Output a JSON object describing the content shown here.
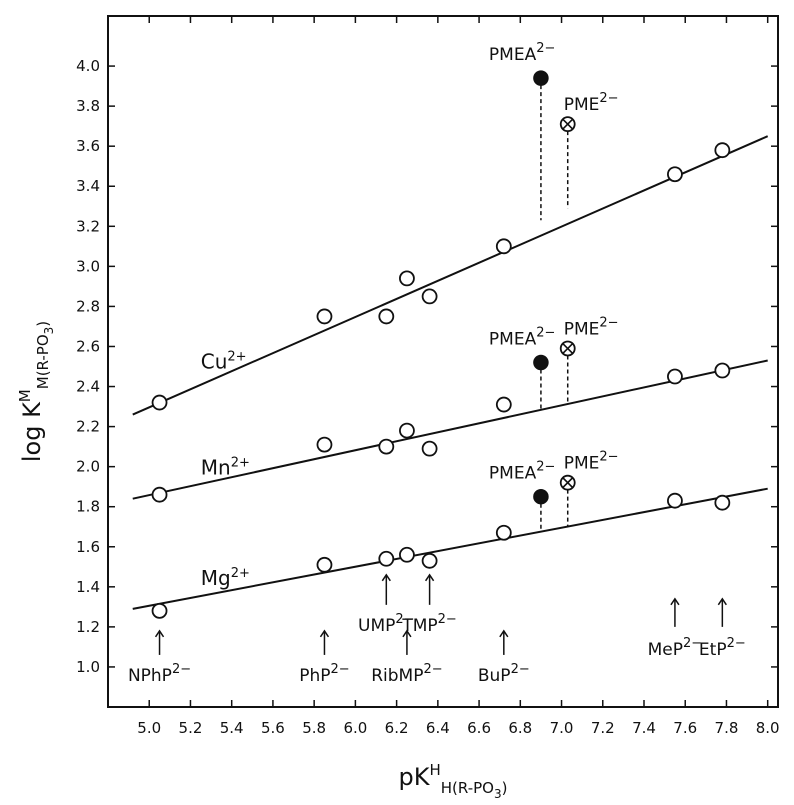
{
  "chart_data": {
    "type": "scatter",
    "x_axis": {
      "label": "pK",
      "label_sup": "H",
      "label_sub": "H(R-PO",
      "label_sub_tail": "3",
      "label_close": ")",
      "range": [
        4.8,
        8.05
      ],
      "ticks": [
        5.0,
        5.2,
        5.4,
        5.6,
        5.8,
        6.0,
        6.2,
        6.4,
        6.6,
        6.8,
        7.0,
        7.2,
        7.4,
        7.6,
        7.8,
        8.0
      ],
      "tick_labels": [
        "5.0",
        "5.2",
        "5.4",
        "5.6",
        "5.8",
        "6.0",
        "6.2",
        "6.4",
        "6.6",
        "6.8",
        "7.0",
        "7.2",
        "7.4",
        "7.6",
        "7.8",
        "8.0"
      ]
    },
    "y_axis": {
      "label": "log K",
      "label_sup": "M",
      "label_sub": "M(R-PO",
      "label_sub_tail": "3",
      "label_close": ")",
      "range": [
        0.8,
        4.25
      ],
      "ticks": [
        1.0,
        1.2,
        1.4,
        1.6,
        1.8,
        2.0,
        2.2,
        2.4,
        2.6,
        2.8,
        3.0,
        3.2,
        3.4,
        3.6,
        3.8,
        4.0
      ],
      "tick_labels": [
        "1.0",
        "1.2",
        "1.4",
        "1.6",
        "1.8",
        "2.0",
        "2.2",
        "2.4",
        "2.6",
        "2.8",
        "3.0",
        "3.2",
        "3.4",
        "3.6",
        "3.8",
        "4.0"
      ]
    },
    "series": [
      {
        "name": "Cu",
        "charge": "2+",
        "line": {
          "x": [
            4.92,
            8.0
          ],
          "y": [
            2.26,
            3.65
          ]
        },
        "points": [
          {
            "x": 5.05,
            "y": 2.32
          },
          {
            "x": 5.85,
            "y": 2.75
          },
          {
            "x": 6.15,
            "y": 2.75
          },
          {
            "x": 6.25,
            "y": 2.94
          },
          {
            "x": 6.36,
            "y": 2.85
          },
          {
            "x": 6.72,
            "y": 3.1
          },
          {
            "x": 7.55,
            "y": 3.46
          },
          {
            "x": 7.78,
            "y": 3.58
          }
        ],
        "special": [
          {
            "label": "PMEA",
            "charge": "2−",
            "marker": "filled",
            "x": 6.9,
            "y": 3.94,
            "line_base_y": 3.23
          },
          {
            "label": "PME",
            "charge": "2−",
            "marker": "crossed",
            "x": 7.03,
            "y": 3.71,
            "line_base_y": 3.29
          }
        ]
      },
      {
        "name": "Mn",
        "charge": "2+",
        "line": {
          "x": [
            4.92,
            8.0
          ],
          "y": [
            1.84,
            2.53
          ]
        },
        "points": [
          {
            "x": 5.05,
            "y": 1.86
          },
          {
            "x": 5.85,
            "y": 2.11
          },
          {
            "x": 6.15,
            "y": 2.1
          },
          {
            "x": 6.25,
            "y": 2.18
          },
          {
            "x": 6.36,
            "y": 2.09
          },
          {
            "x": 6.72,
            "y": 2.31
          },
          {
            "x": 7.55,
            "y": 2.45
          },
          {
            "x": 7.78,
            "y": 2.48
          }
        ],
        "special": [
          {
            "label": "PMEA",
            "charge": "2−",
            "marker": "filled",
            "x": 6.9,
            "y": 2.52,
            "line_base_y": 2.28
          },
          {
            "label": "PME",
            "charge": "2−",
            "marker": "crossed",
            "x": 7.03,
            "y": 2.59,
            "line_base_y": 2.31
          }
        ]
      },
      {
        "name": "Mg",
        "charge": "2+",
        "line": {
          "x": [
            4.92,
            8.0
          ],
          "y": [
            1.29,
            1.89
          ]
        },
        "points": [
          {
            "x": 5.05,
            "y": 1.28
          },
          {
            "x": 5.85,
            "y": 1.51
          },
          {
            "x": 6.15,
            "y": 1.54
          },
          {
            "x": 6.25,
            "y": 1.56
          },
          {
            "x": 6.36,
            "y": 1.53
          },
          {
            "x": 6.72,
            "y": 1.67
          },
          {
            "x": 7.55,
            "y": 1.83
          },
          {
            "x": 7.78,
            "y": 1.82
          }
        ],
        "special": [
          {
            "label": "PMEA",
            "charge": "2−",
            "marker": "filled",
            "x": 6.9,
            "y": 1.85,
            "line_base_y": 1.68
          },
          {
            "label": "PME",
            "charge": "2−",
            "marker": "crossed",
            "x": 7.03,
            "y": 1.92,
            "line_base_y": 1.7
          }
        ]
      }
    ],
    "compound_labels": [
      {
        "name": "NPhP",
        "charge": "2−",
        "x": 5.05,
        "arrow_x": 5.05,
        "row": "low"
      },
      {
        "name": "PhP",
        "charge": "2−",
        "x": 5.85,
        "arrow_x": 5.85,
        "row": "low"
      },
      {
        "name": "UMP",
        "charge": "2−",
        "x": 6.15,
        "arrow_x": 6.15,
        "row": "high"
      },
      {
        "name": "TMP",
        "charge": "2−",
        "x": 6.36,
        "arrow_x": 6.36,
        "row": "high"
      },
      {
        "name": "RibMP",
        "charge": "2−",
        "x": 6.25,
        "arrow_x": 6.25,
        "row": "low"
      },
      {
        "name": "BuP",
        "charge": "2−",
        "x": 6.72,
        "arrow_x": 6.72,
        "row": "low"
      },
      {
        "name": "MeP",
        "charge": "2−",
        "x": 7.55,
        "arrow_x": 7.55,
        "row": "mid"
      },
      {
        "name": "EtP",
        "charge": "2−",
        "x": 7.78,
        "arrow_x": 7.78,
        "row": "mid"
      }
    ],
    "grid": false,
    "legend": "none"
  }
}
